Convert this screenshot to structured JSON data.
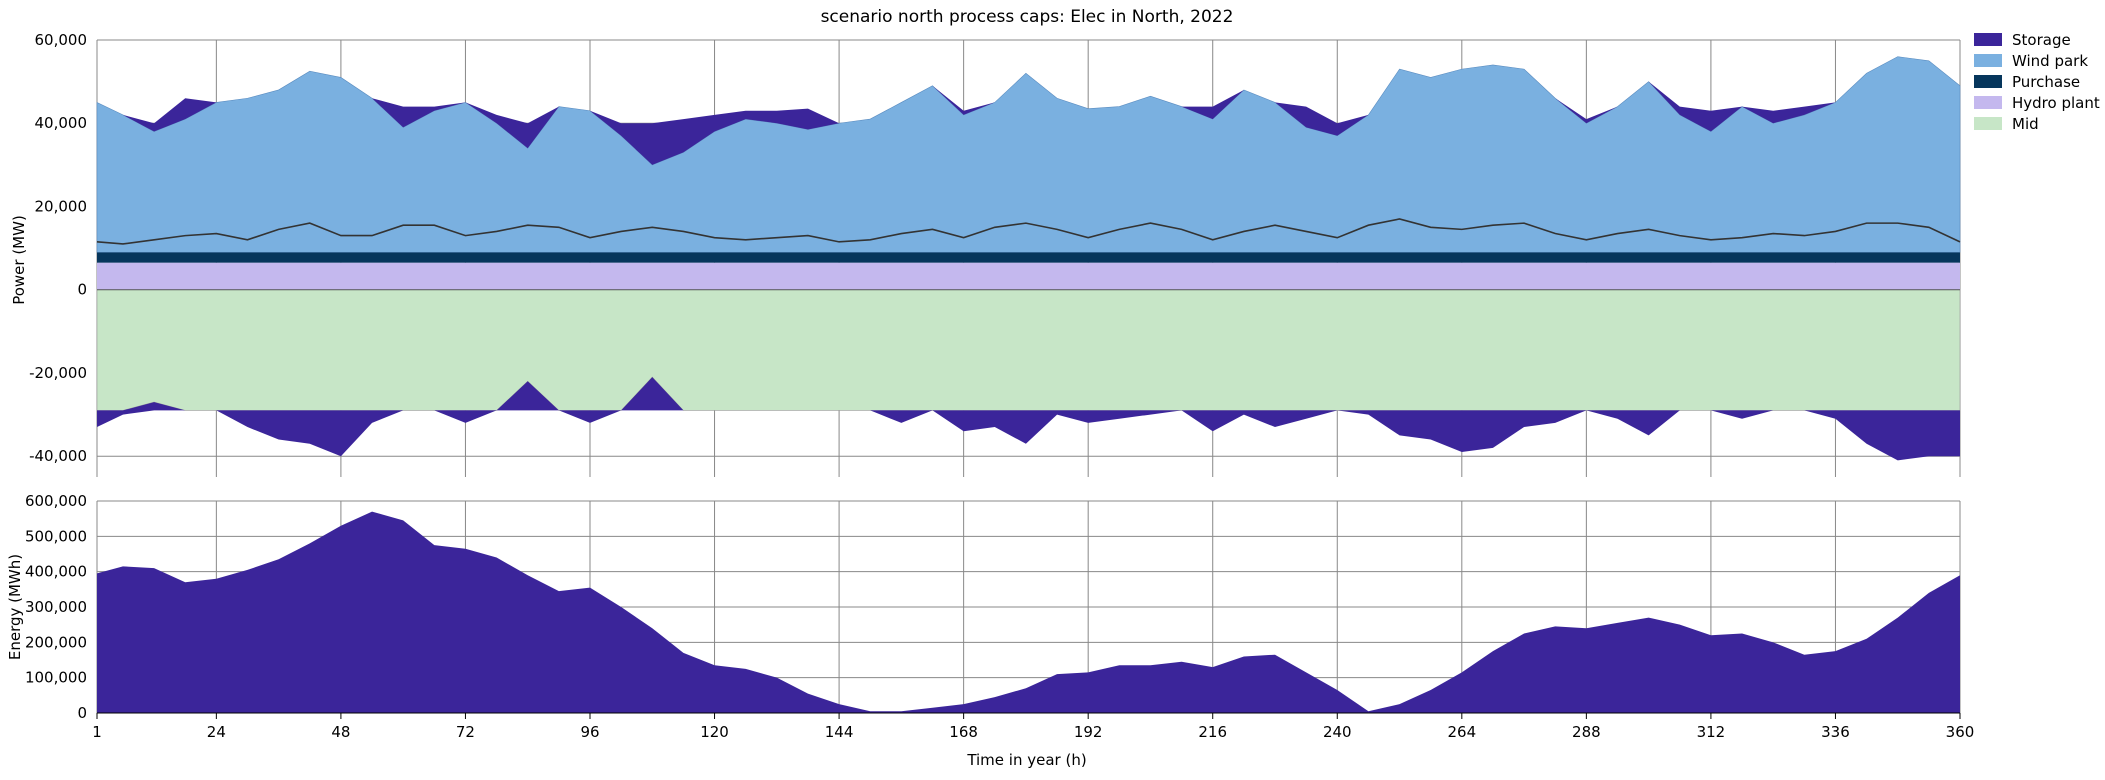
{
  "chart_data": [
    {
      "type": "area",
      "title": "scenario north process caps: Elec in North, 2022",
      "ylabel": "Power (MW)",
      "xlabel": "",
      "xlim": [
        1,
        360
      ],
      "ylim": [
        -45000,
        60000
      ],
      "grid": true,
      "legend_placement": "outside-top-right",
      "x_ticks": [
        1,
        24,
        48,
        72,
        96,
        120,
        144,
        168,
        192,
        216,
        240,
        264,
        288,
        312,
        336,
        360
      ],
      "x_tick_labels": [
        "",
        "",
        "",
        "",
        "",
        "",
        "",
        "",
        "",
        "",
        "",
        "",
        "",
        "",
        "",
        ""
      ],
      "y_ticks": [
        -40000,
        -20000,
        0,
        20000,
        40000,
        60000
      ],
      "y_tick_labels": [
        "-40,000",
        "-20,000",
        "0",
        "20,000",
        "40,000",
        "60,000"
      ],
      "legend": [
        {
          "label": "Storage",
          "color": "#3b259a"
        },
        {
          "label": "Wind park",
          "color": "#7ab0e0"
        },
        {
          "label": "Purchase",
          "color": "#06365c"
        },
        {
          "label": "Hydro plant",
          "color": "#c4b8ee"
        },
        {
          "label": "Mid",
          "color": "#c7e6c7"
        }
      ],
      "series": [
        {
          "name": "Mid",
          "color": "#c7e6c7",
          "base": 0,
          "constant_value": -29000
        },
        {
          "name": "Hydro plant",
          "color": "#c4b8ee",
          "band": [
            0,
            6500
          ]
        },
        {
          "name": "Purchase",
          "color": "#06365c",
          "band": [
            6500,
            9000
          ]
        },
        {
          "name": "Demand line",
          "color": "#333333",
          "x": [
            1,
            6,
            12,
            18,
            24,
            30,
            36,
            42,
            48,
            54,
            60,
            66,
            72,
            78,
            84,
            90,
            96,
            102,
            108,
            114,
            120,
            126,
            132,
            138,
            144,
            150,
            156,
            162,
            168,
            174,
            180,
            186,
            192,
            198,
            204,
            210,
            216,
            222,
            228,
            234,
            240,
            246,
            252,
            258,
            264,
            270,
            276,
            282,
            288,
            294,
            300,
            306,
            312,
            318,
            324,
            330,
            336,
            342,
            348,
            354,
            360
          ],
          "values": [
            11500,
            11000,
            12000,
            13000,
            13500,
            12000,
            14500,
            16000,
            13000,
            13000,
            15500,
            15500,
            13000,
            14000,
            15500,
            15000,
            12500,
            14000,
            15000,
            14000,
            12500,
            12000,
            12500,
            13000,
            11500,
            12000,
            13500,
            14500,
            12500,
            15000,
            16000,
            14500,
            12500,
            14500,
            16000,
            14500,
            12000,
            14000,
            15500,
            14000,
            12500,
            15500,
            17000,
            15000,
            14500,
            15500,
            16000,
            13500,
            12000,
            13500,
            14500,
            13000,
            12000,
            12500,
            13500,
            13000,
            14000,
            16000,
            16000,
            15000,
            11500
          ]
        },
        {
          "name": "Wind park",
          "color": "#7ab0e0",
          "x": [
            1,
            6,
            12,
            18,
            24,
            30,
            36,
            42,
            48,
            54,
            60,
            66,
            72,
            78,
            84,
            90,
            96,
            102,
            108,
            114,
            120,
            126,
            132,
            138,
            144,
            150,
            156,
            162,
            168,
            174,
            180,
            186,
            192,
            198,
            204,
            210,
            216,
            222,
            228,
            234,
            240,
            246,
            252,
            258,
            264,
            270,
            276,
            282,
            288,
            294,
            300,
            306,
            312,
            318,
            324,
            330,
            336,
            342,
            348,
            354,
            360
          ],
          "values": [
            45000,
            42000,
            38000,
            41000,
            45000,
            46000,
            48000,
            52500,
            51000,
            46000,
            39000,
            43000,
            45000,
            40000,
            34000,
            44000,
            43000,
            37000,
            30000,
            33000,
            38000,
            41000,
            40000,
            38500,
            40000,
            41000,
            45000,
            49000,
            42000,
            45000,
            52000,
            46000,
            43500,
            44000,
            46500,
            44000,
            41000,
            48000,
            45000,
            39000,
            37000,
            42000,
            53000,
            51000,
            53000,
            54000,
            53000,
            46000,
            40000,
            44000,
            50000,
            42000,
            38000,
            44000,
            40000,
            42000,
            45000,
            52000,
            56000,
            55000,
            49000
          ]
        },
        {
          "name": "Storage (discharge)",
          "color": "#3b259a",
          "x": [
            1,
            6,
            12,
            18,
            24,
            30,
            36,
            42,
            48,
            54,
            60,
            66,
            72,
            78,
            84,
            90,
            96,
            102,
            108,
            114,
            120,
            126,
            132,
            138,
            144,
            150,
            156,
            162,
            168,
            174,
            180,
            186,
            192,
            198,
            204,
            210,
            216,
            222,
            228,
            234,
            240,
            246,
            252,
            258,
            264,
            270,
            276,
            282,
            288,
            294,
            300,
            306,
            312,
            318,
            324,
            330,
            336,
            342,
            348,
            354,
            360
          ],
          "values": [
            0,
            0,
            2000,
            5000,
            0,
            0,
            0,
            0,
            0,
            0,
            5000,
            1000,
            0,
            2000,
            6000,
            0,
            0,
            3000,
            10000,
            8000,
            4000,
            2000,
            3000,
            5000,
            0,
            0,
            0,
            0,
            1000,
            0,
            0,
            0,
            0,
            0,
            0,
            0,
            3000,
            0,
            0,
            5000,
            3000,
            0,
            0,
            0,
            0,
            0,
            0,
            0,
            1000,
            0,
            0,
            2000,
            5000,
            0,
            3000,
            2000,
            0,
            0,
            0,
            0,
            0
          ]
        },
        {
          "name": "Storage (charge)",
          "color": "#3b259a",
          "x": [
            1,
            6,
            12,
            18,
            24,
            30,
            36,
            42,
            48,
            54,
            60,
            66,
            72,
            78,
            84,
            90,
            96,
            102,
            108,
            114,
            120,
            126,
            132,
            138,
            144,
            150,
            156,
            162,
            168,
            174,
            180,
            186,
            192,
            198,
            204,
            210,
            216,
            222,
            228,
            234,
            240,
            246,
            252,
            258,
            264,
            270,
            276,
            282,
            288,
            294,
            300,
            306,
            312,
            318,
            324,
            330,
            336,
            342,
            348,
            354,
            360
          ],
          "values": [
            -33000,
            -30000,
            -27000,
            -29000,
            -29000,
            -33000,
            -36000,
            -37000,
            -40000,
            -32000,
            -29000,
            -29000,
            -32000,
            -29000,
            -22000,
            -29000,
            -32000,
            -29000,
            -21000,
            -29000,
            -29000,
            -29000,
            -29000,
            -29000,
            -29000,
            -29000,
            -32000,
            -29000,
            -34000,
            -33000,
            -37000,
            -30000,
            -32000,
            -31000,
            -30000,
            -29000,
            -34000,
            -30000,
            -33000,
            -31000,
            -29000,
            -30000,
            -35000,
            -36000,
            -39000,
            -38000,
            -33000,
            -32000,
            -29000,
            -31000,
            -35000,
            -29000,
            -29000,
            -31000,
            -29000,
            -29000,
            -31000,
            -37000,
            -41000,
            -40000,
            -40000
          ]
        }
      ]
    },
    {
      "type": "area",
      "title": "",
      "ylabel": "Energy (MWh)",
      "xlabel": "Time in year (h)",
      "xlim": [
        1,
        360
      ],
      "ylim": [
        0,
        600000
      ],
      "grid": true,
      "x_ticks": [
        1,
        24,
        48,
        72,
        96,
        120,
        144,
        168,
        192,
        216,
        240,
        264,
        288,
        312,
        336,
        360
      ],
      "x_tick_labels": [
        "1",
        "24",
        "48",
        "72",
        "96",
        "120",
        "144",
        "168",
        "192",
        "216",
        "240",
        "264",
        "288",
        "312",
        "336",
        "360"
      ],
      "y_ticks": [
        0,
        100000,
        200000,
        300000,
        400000,
        500000,
        600000
      ],
      "y_tick_labels": [
        "0",
        "100,000",
        "200,000",
        "300,000",
        "400,000",
        "500,000",
        "600,000"
      ],
      "series": [
        {
          "name": "Storage",
          "color": "#3b259a",
          "x": [
            1,
            6,
            12,
            18,
            24,
            30,
            36,
            42,
            48,
            54,
            60,
            66,
            72,
            78,
            84,
            90,
            96,
            102,
            108,
            114,
            120,
            126,
            132,
            138,
            144,
            150,
            156,
            162,
            168,
            174,
            180,
            186,
            192,
            198,
            204,
            210,
            216,
            222,
            228,
            234,
            240,
            246,
            252,
            258,
            264,
            270,
            276,
            282,
            288,
            294,
            300,
            306,
            312,
            318,
            324,
            330,
            336,
            342,
            348,
            354,
            360
          ],
          "values": [
            395000,
            415000,
            410000,
            370000,
            380000,
            405000,
            435000,
            480000,
            530000,
            570000,
            545000,
            475000,
            465000,
            440000,
            390000,
            345000,
            355000,
            300000,
            240000,
            170000,
            135000,
            125000,
            100000,
            55000,
            25000,
            5000,
            5000,
            15000,
            25000,
            45000,
            70000,
            110000,
            115000,
            135000,
            135000,
            145000,
            130000,
            160000,
            165000,
            115000,
            65000,
            5000,
            25000,
            65000,
            115000,
            175000,
            225000,
            245000,
            240000,
            255000,
            270000,
            250000,
            220000,
            225000,
            200000,
            165000,
            175000,
            210000,
            270000,
            340000,
            390000
          ]
        }
      ]
    }
  ]
}
